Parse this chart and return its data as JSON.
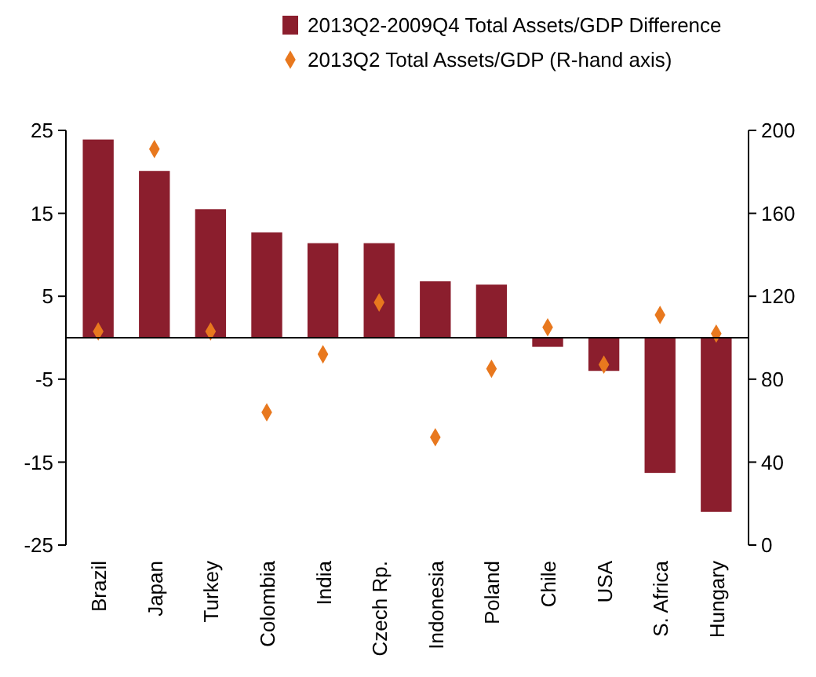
{
  "chart_data": {
    "type": "bar",
    "categories": [
      "Brazil",
      "Japan",
      "Turkey",
      "Colombia",
      "India",
      "Czech Rp.",
      "Indonesia",
      "Poland",
      "Chile",
      "USA",
      "S. Africa",
      "Hungary"
    ],
    "series": [
      {
        "name": "2013Q2-2009Q4 Total Assets/GDP Difference",
        "color": "#8b1e2d",
        "values": [
          23.9,
          20.1,
          15.5,
          12.7,
          11.4,
          11.4,
          6.8,
          6.4,
          -1.1,
          -4.0,
          -16.3,
          -21.0
        ]
      },
      {
        "name": "2013Q2 Total Assets/GDP (R-hand axis)",
        "type": "scatter",
        "axis": "y2",
        "color": "#e8781e",
        "values": [
          103,
          191,
          103,
          64,
          92,
          117,
          52,
          85,
          105,
          87,
          111,
          102
        ]
      }
    ],
    "ylim": [
      -25,
      25
    ],
    "yticks": [
      -25,
      -15,
      -5,
      5,
      15,
      25
    ],
    "y2lim": [
      0,
      200
    ],
    "y2ticks": [
      0,
      40,
      80,
      120,
      160,
      200
    ],
    "legend": "top",
    "marker": "diamond",
    "grid": false
  }
}
